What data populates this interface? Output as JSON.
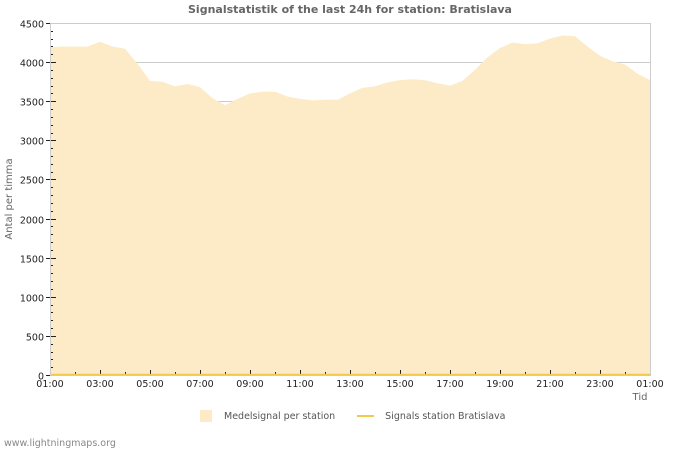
{
  "chart_data": {
    "type": "area",
    "title": "Signalstatistik of the last 24h for station: Bratislava",
    "xlabel": "Tid",
    "ylabel": "Antal per timma",
    "ylim": [
      0,
      4500
    ],
    "yticks": [
      0,
      500,
      1000,
      1500,
      2000,
      2500,
      3000,
      3500,
      4000,
      4500
    ],
    "xticks": [
      "01:00",
      "03:00",
      "05:00",
      "07:00",
      "09:00",
      "11:00",
      "13:00",
      "15:00",
      "17:00",
      "19:00",
      "21:00",
      "23:00",
      "01:00"
    ],
    "grid": true,
    "legend_position": "bottom",
    "x": [
      "01:00",
      "01:30",
      "02:00",
      "02:30",
      "03:00",
      "03:30",
      "04:00",
      "04:30",
      "05:00",
      "05:30",
      "06:00",
      "06:30",
      "07:00",
      "07:30",
      "08:00",
      "08:30",
      "09:00",
      "09:30",
      "10:00",
      "10:30",
      "11:00",
      "11:30",
      "12:00",
      "12:30",
      "13:00",
      "13:30",
      "14:00",
      "14:30",
      "15:00",
      "15:30",
      "16:00",
      "16:30",
      "17:00",
      "17:30",
      "18:00",
      "18:30",
      "19:00",
      "19:30",
      "20:00",
      "20:30",
      "21:00",
      "21:30",
      "22:00",
      "22:30",
      "23:00",
      "23:30",
      "00:00",
      "00:30",
      "01:00"
    ],
    "series": [
      {
        "name": "Medelsignal per station",
        "kind": "area",
        "color": "#fdebc8",
        "values": [
          4190,
          4200,
          4200,
          4200,
          4260,
          4200,
          4170,
          3980,
          3760,
          3750,
          3690,
          3720,
          3680,
          3540,
          3450,
          3530,
          3600,
          3620,
          3620,
          3560,
          3530,
          3510,
          3520,
          3520,
          3600,
          3670,
          3690,
          3740,
          3770,
          3780,
          3770,
          3730,
          3700,
          3760,
          3900,
          4060,
          4180,
          4250,
          4230,
          4240,
          4300,
          4340,
          4330,
          4200,
          4080,
          4010,
          3970,
          3850,
          3770
        ]
      },
      {
        "name": "Signals station Bratislava",
        "kind": "line",
        "color": "#f2c94c",
        "values": [
          0,
          0,
          0,
          0,
          0,
          0,
          0,
          0,
          0,
          0,
          0,
          0,
          0,
          0,
          0,
          0,
          0,
          0,
          0,
          0,
          0,
          0,
          0,
          0,
          0,
          0,
          0,
          0,
          0,
          0,
          0,
          0,
          0,
          0,
          0,
          0,
          0,
          0,
          0,
          0,
          0,
          0,
          0,
          0,
          0,
          0,
          0,
          0,
          0
        ]
      }
    ]
  },
  "header": {
    "title": "Signalstatistik of the last 24h for station: Bratislava"
  },
  "axes": {
    "y_title": "Antal per timma",
    "x_title": "Tid"
  },
  "legend": {
    "items": [
      {
        "label": "Medelsignal per station",
        "color": "#fdebc8"
      },
      {
        "label": "Signals station Bratislava",
        "color": "#f2c94c"
      }
    ]
  },
  "footer": {
    "source": "www.lightningmaps.org"
  }
}
